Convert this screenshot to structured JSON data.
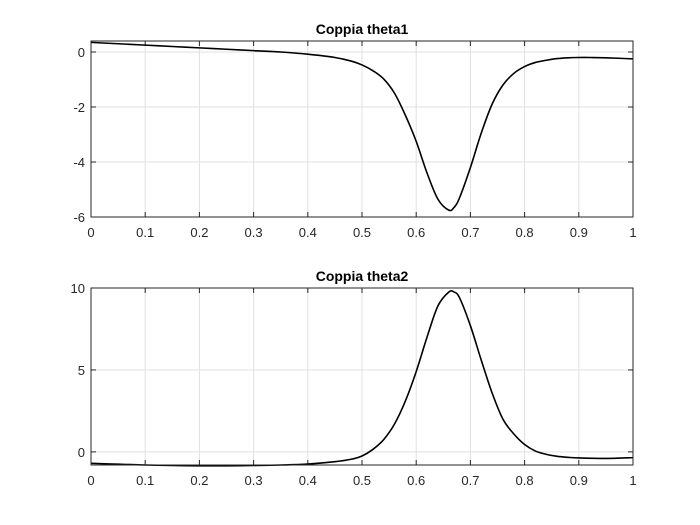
{
  "chart_data": [
    {
      "type": "line",
      "title": "Coppia theta1",
      "xlabel": "",
      "ylabel": "",
      "xlim": [
        0,
        1
      ],
      "ylim": [
        -6,
        0.4
      ],
      "xticks": [
        0,
        0.1,
        0.2,
        0.3,
        0.4,
        0.5,
        0.6,
        0.7,
        0.8,
        0.9,
        1
      ],
      "xtick_labels": [
        "0",
        "0.1",
        "0.2",
        "0.3",
        "0.4",
        "0.5",
        "0.6",
        "0.7",
        "0.8",
        "0.9",
        "1"
      ],
      "yticks": [
        -6,
        -4,
        -2,
        0
      ],
      "ytick_labels": [
        "-6",
        "-4",
        "-2",
        "0"
      ],
      "grid": true,
      "color": "#000000",
      "series": [
        {
          "x": [
            0,
            0.05,
            0.1,
            0.15,
            0.2,
            0.25,
            0.3,
            0.35,
            0.4,
            0.45,
            0.48,
            0.5,
            0.52,
            0.54,
            0.56,
            0.58,
            0.6,
            0.62,
            0.64,
            0.66,
            0.67,
            0.68,
            0.7,
            0.72,
            0.74,
            0.76,
            0.78,
            0.8,
            0.82,
            0.84,
            0.86,
            0.88,
            0.9,
            0.92,
            0.95,
            1
          ],
          "y": [
            0.35,
            0.3,
            0.25,
            0.2,
            0.15,
            0.1,
            0.05,
            0.0,
            -0.08,
            -0.2,
            -0.33,
            -0.47,
            -0.68,
            -0.98,
            -1.5,
            -2.3,
            -3.25,
            -4.4,
            -5.35,
            -5.75,
            -5.65,
            -5.3,
            -4.2,
            -2.95,
            -1.9,
            -1.2,
            -0.78,
            -0.53,
            -0.38,
            -0.3,
            -0.24,
            -0.21,
            -0.2,
            -0.2,
            -0.21,
            -0.25
          ]
        }
      ]
    },
    {
      "type": "line",
      "title": "Coppia theta2",
      "xlabel": "",
      "ylabel": "",
      "xlim": [
        0,
        1
      ],
      "ylim": [
        -0.8,
        10
      ],
      "xticks": [
        0,
        0.1,
        0.2,
        0.3,
        0.4,
        0.5,
        0.6,
        0.7,
        0.8,
        0.9,
        1
      ],
      "xtick_labels": [
        "0",
        "0.1",
        "0.2",
        "0.3",
        "0.4",
        "0.5",
        "0.6",
        "0.7",
        "0.8",
        "0.9",
        "1"
      ],
      "yticks": [
        0,
        5,
        10
      ],
      "ytick_labels": [
        "0",
        "5",
        "10"
      ],
      "grid": true,
      "color": "#000000",
      "series": [
        {
          "x": [
            0,
            0.05,
            0.1,
            0.15,
            0.2,
            0.25,
            0.3,
            0.35,
            0.4,
            0.45,
            0.48,
            0.5,
            0.52,
            0.54,
            0.56,
            0.58,
            0.6,
            0.62,
            0.64,
            0.66,
            0.67,
            0.68,
            0.7,
            0.72,
            0.74,
            0.76,
            0.78,
            0.8,
            0.82,
            0.84,
            0.86,
            0.88,
            0.9,
            0.95,
            1
          ],
          "y": [
            -0.7,
            -0.75,
            -0.8,
            -0.83,
            -0.85,
            -0.85,
            -0.83,
            -0.8,
            -0.74,
            -0.6,
            -0.45,
            -0.25,
            0.15,
            0.75,
            1.7,
            3.1,
            4.9,
            7.0,
            8.9,
            9.75,
            9.75,
            9.4,
            7.7,
            5.6,
            3.6,
            2.0,
            1.1,
            0.45,
            0.05,
            -0.15,
            -0.27,
            -0.33,
            -0.37,
            -0.4,
            -0.35
          ]
        }
      ]
    }
  ]
}
